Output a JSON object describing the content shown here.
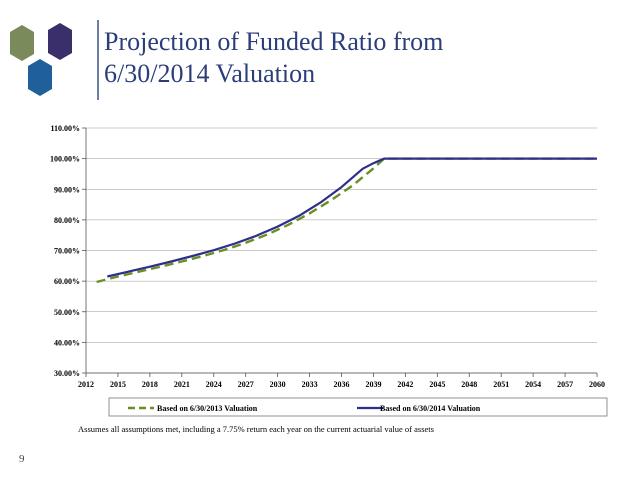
{
  "slide": {
    "title_line1": "Projection of Funded Ratio from",
    "title_line2": "6/30/2014 Valuation",
    "footnote": "Assumes all assumptions met, including a 7.75% return each year on the current actuarial value of assets",
    "page_number": "9"
  },
  "colors": {
    "title": "#2c3e7a",
    "hex_green": "#7b8a5a",
    "hex_purple": "#3b2f6b",
    "hex_blue": "#1f5f9a",
    "series_2013": "#6b8e23",
    "series_2014": "#2e2e8b"
  },
  "chart_data": {
    "type": "line",
    "title": "",
    "xlabel": "",
    "ylabel": "",
    "x_ticks": [
      "2012",
      "2015",
      "2018",
      "2021",
      "2024",
      "2027",
      "2030",
      "2033",
      "2036",
      "2039",
      "2042",
      "2045",
      "2048",
      "2051",
      "2054",
      "2057",
      "2060"
    ],
    "y_ticks": [
      "30.00%",
      "40.00%",
      "50.00%",
      "60.00%",
      "70.00%",
      "80.00%",
      "90.00%",
      "100.00%",
      "110.00%"
    ],
    "xlim": [
      2012,
      2060
    ],
    "ylim": [
      30,
      110
    ],
    "grid": "horizontal",
    "legend_position": "bottom",
    "series": [
      {
        "name": "Based on 6/30/2013 Valuation",
        "style": "dashed",
        "x": [
          2013,
          2015,
          2017,
          2019,
          2021,
          2023,
          2025,
          2027,
          2029,
          2031,
          2033,
          2035,
          2037,
          2039,
          2040,
          2042,
          2045,
          2048,
          2051,
          2054,
          2057,
          2060
        ],
        "y": [
          59.7,
          61.5,
          63.1,
          64.7,
          66.4,
          68.2,
          70.2,
          72.5,
          75.2,
          78.4,
          82.1,
          86.4,
          91.1,
          96.8,
          100,
          100,
          100,
          100,
          100,
          100,
          100,
          100
        ]
      },
      {
        "name": "Based on 6/30/2014 Valuation",
        "style": "solid",
        "x": [
          2014,
          2016,
          2018,
          2020,
          2022,
          2024,
          2026,
          2028,
          2030,
          2032,
          2034,
          2036,
          2038,
          2039,
          2040,
          2042,
          2045,
          2048,
          2051,
          2054,
          2057,
          2060
        ],
        "y": [
          61.5,
          63.1,
          64.7,
          66.4,
          68.2,
          70.1,
          72.3,
          74.8,
          77.8,
          81.3,
          85.6,
          90.7,
          96.7,
          98.5,
          100,
          100,
          100,
          100,
          100,
          100,
          100,
          100
        ]
      }
    ]
  }
}
